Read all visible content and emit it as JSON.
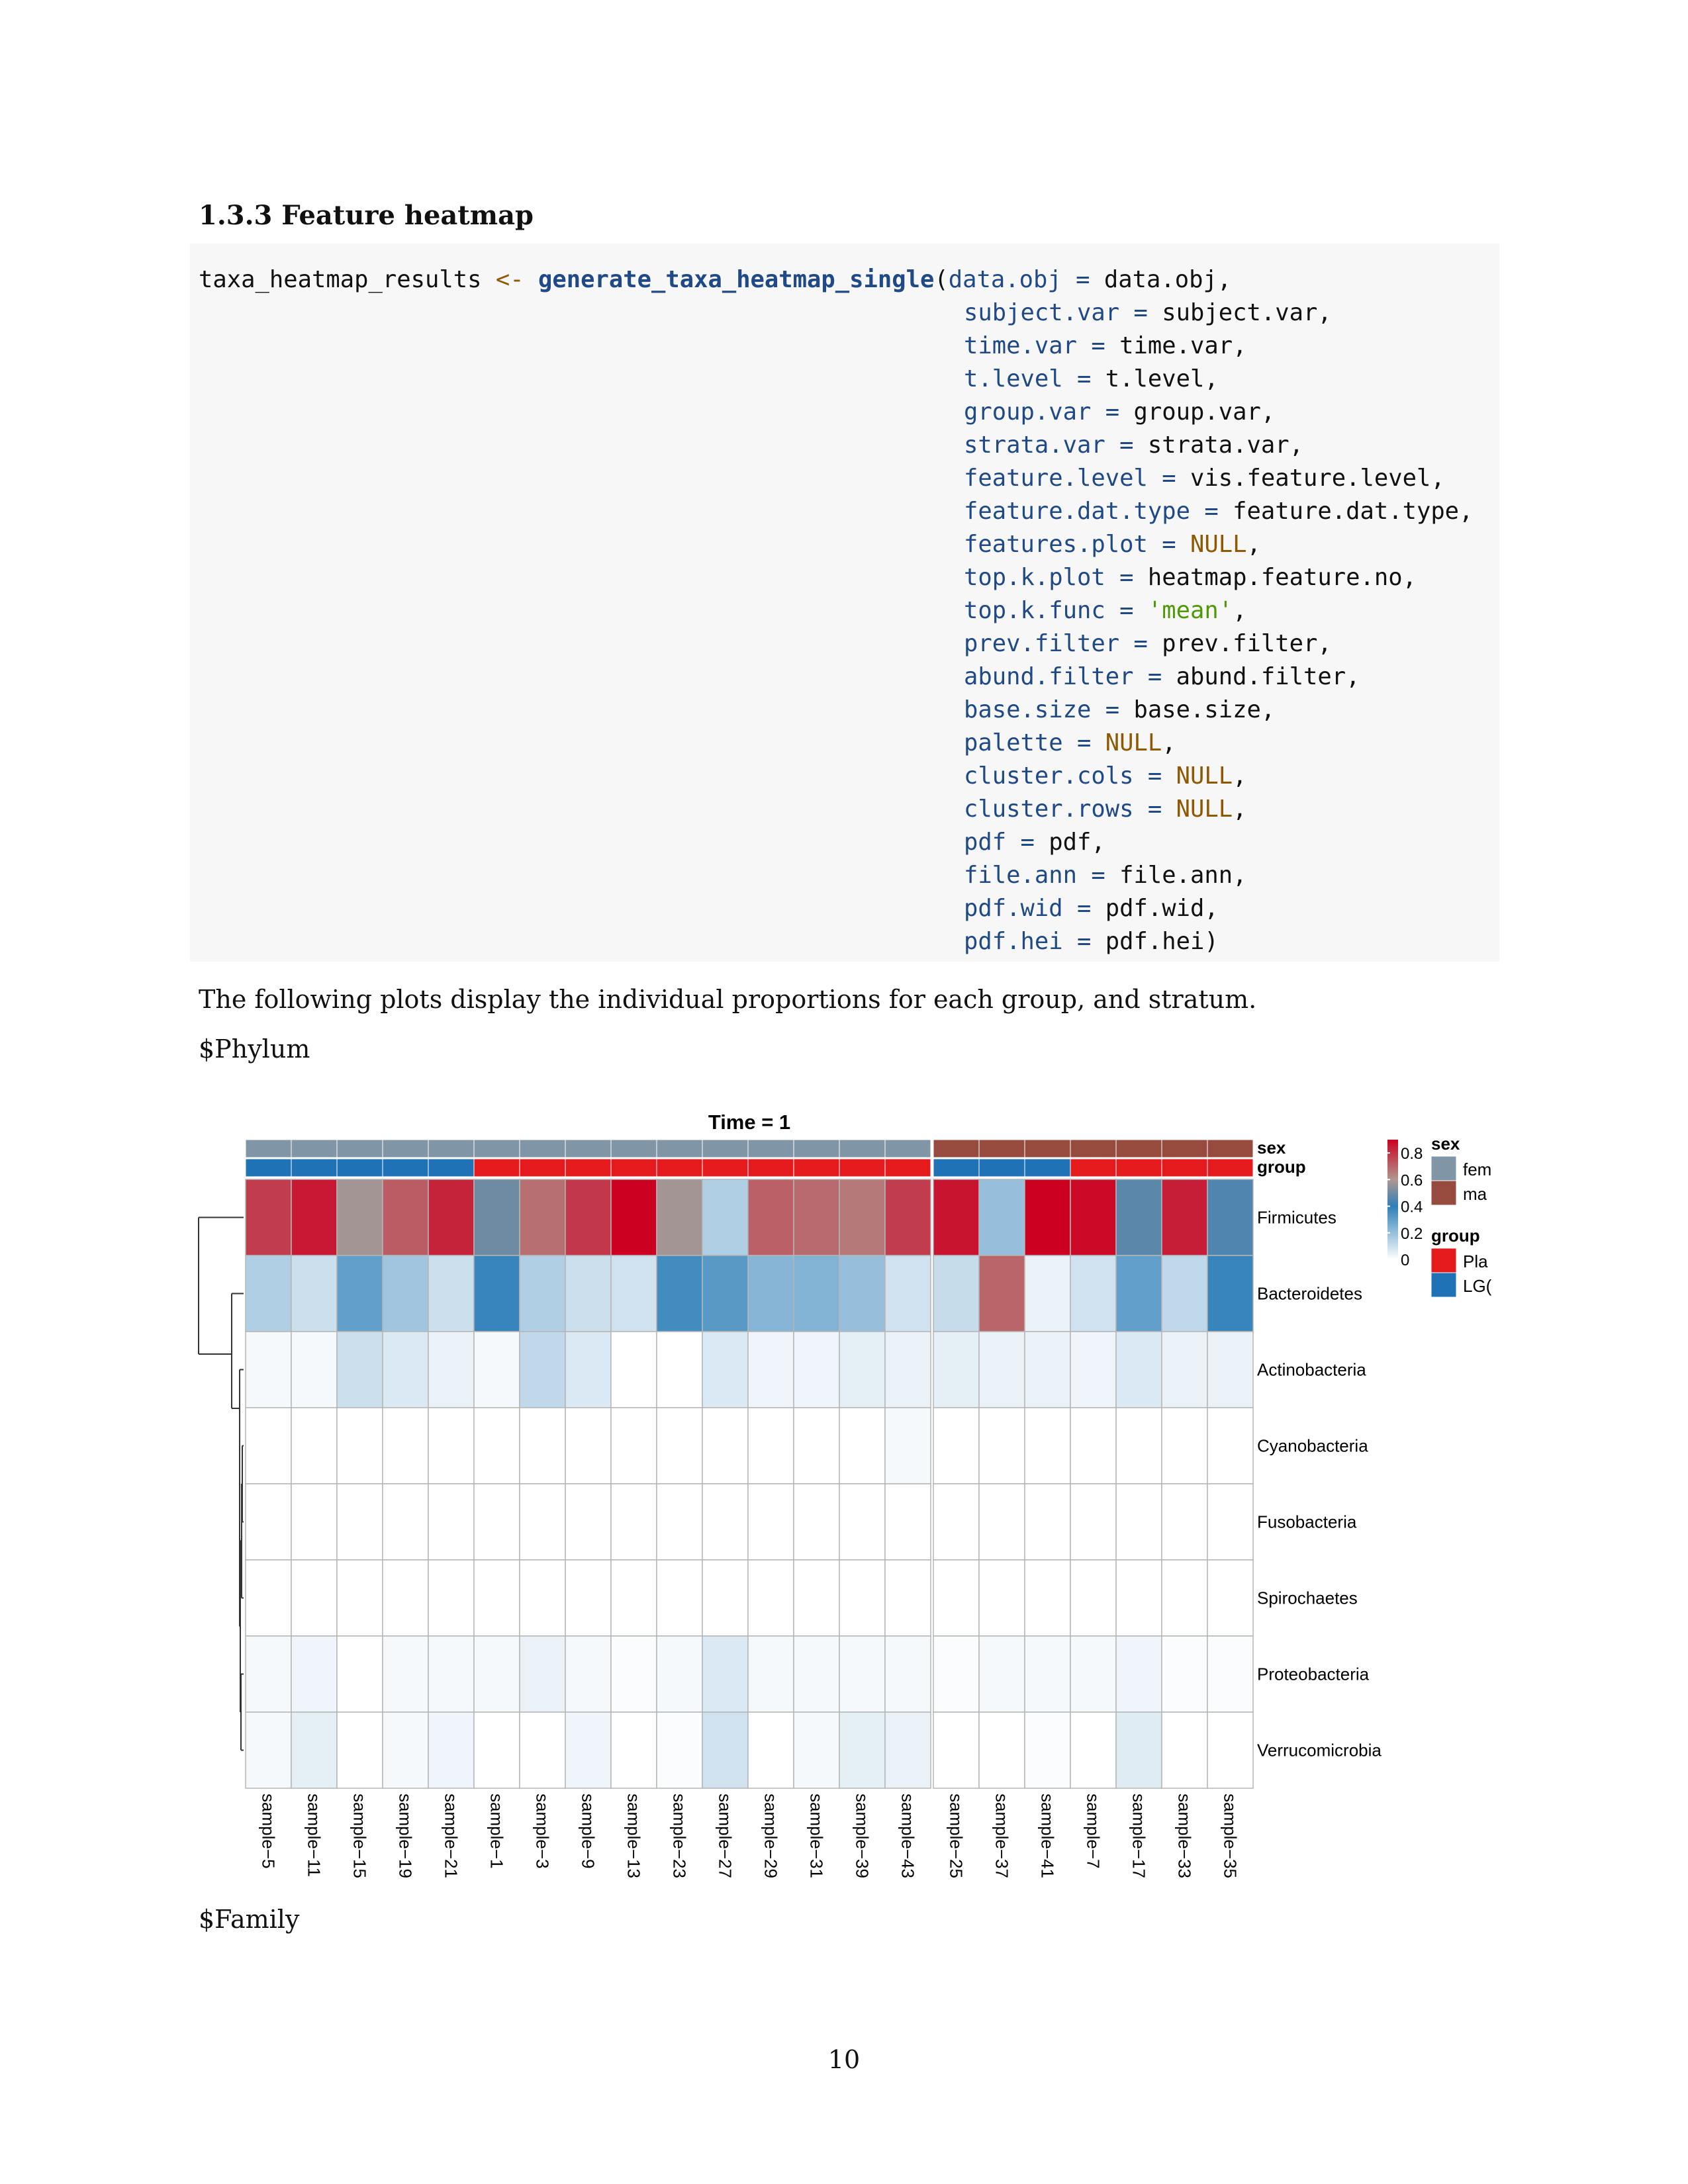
{
  "section": {
    "title": "1.3.3 Feature heatmap"
  },
  "code": {
    "lines": [
      [
        [
          "plain",
          "taxa_heatmap_results "
        ],
        [
          "op",
          "<-"
        ],
        [
          "plain",
          " "
        ],
        [
          "fn",
          "generate_taxa_heatmap_single"
        ],
        [
          "plain",
          "("
        ],
        [
          "arg",
          "data.obj"
        ],
        [
          "eq",
          " = "
        ],
        [
          "plain",
          "data.obj,"
        ]
      ],
      [
        [
          "arg",
          "subject.var"
        ],
        [
          "eq",
          " = "
        ],
        [
          "plain",
          "subject.var,"
        ]
      ],
      [
        [
          "arg",
          "time.var"
        ],
        [
          "eq",
          " = "
        ],
        [
          "plain",
          "time.var,"
        ]
      ],
      [
        [
          "arg",
          "t.level"
        ],
        [
          "eq",
          " = "
        ],
        [
          "plain",
          "t.level,"
        ]
      ],
      [
        [
          "arg",
          "group.var"
        ],
        [
          "eq",
          " = "
        ],
        [
          "plain",
          "group.var,"
        ]
      ],
      [
        [
          "arg",
          "strata.var"
        ],
        [
          "eq",
          " = "
        ],
        [
          "plain",
          "strata.var,"
        ]
      ],
      [
        [
          "arg",
          "feature.level"
        ],
        [
          "eq",
          " = "
        ],
        [
          "plain",
          "vis.feature.level,"
        ]
      ],
      [
        [
          "arg",
          "feature.dat.type"
        ],
        [
          "eq",
          " = "
        ],
        [
          "plain",
          "feature.dat.type,"
        ]
      ],
      [
        [
          "arg",
          "features.plot"
        ],
        [
          "eq",
          " = "
        ],
        [
          "null",
          "NULL"
        ],
        [
          "plain",
          ","
        ]
      ],
      [
        [
          "arg",
          "top.k.plot"
        ],
        [
          "eq",
          " = "
        ],
        [
          "plain",
          "heatmap.feature.no,"
        ]
      ],
      [
        [
          "arg",
          "top.k.func"
        ],
        [
          "eq",
          " = "
        ],
        [
          "str",
          "'mean'"
        ],
        [
          "plain",
          ","
        ]
      ],
      [
        [
          "arg",
          "prev.filter"
        ],
        [
          "eq",
          " = "
        ],
        [
          "plain",
          "prev.filter,"
        ]
      ],
      [
        [
          "arg",
          "abund.filter"
        ],
        [
          "eq",
          " = "
        ],
        [
          "plain",
          "abund.filter,"
        ]
      ],
      [
        [
          "arg",
          "base.size"
        ],
        [
          "eq",
          " = "
        ],
        [
          "plain",
          "base.size,"
        ]
      ],
      [
        [
          "arg",
          "palette"
        ],
        [
          "eq",
          " = "
        ],
        [
          "null",
          "NULL"
        ],
        [
          "plain",
          ","
        ]
      ],
      [
        [
          "arg",
          "cluster.cols"
        ],
        [
          "eq",
          " = "
        ],
        [
          "null",
          "NULL"
        ],
        [
          "plain",
          ","
        ]
      ],
      [
        [
          "arg",
          "cluster.rows"
        ],
        [
          "eq",
          " = "
        ],
        [
          "null",
          "NULL"
        ],
        [
          "plain",
          ","
        ]
      ],
      [
        [
          "arg",
          "pdf"
        ],
        [
          "eq",
          " = "
        ],
        [
          "plain",
          "pdf,"
        ]
      ],
      [
        [
          "arg",
          "file.ann"
        ],
        [
          "eq",
          " = "
        ],
        [
          "plain",
          "file.ann,"
        ]
      ],
      [
        [
          "arg",
          "pdf.wid"
        ],
        [
          "eq",
          " = "
        ],
        [
          "plain",
          "pdf.wid,"
        ]
      ],
      [
        [
          "arg",
          "pdf.hei"
        ],
        [
          "eq",
          " = "
        ],
        [
          "plain",
          "pdf.hei)"
        ]
      ]
    ]
  },
  "paragraph": "The following plots display the individual proportions for each group, and stratum.",
  "phylum_label": "$Phylum",
  "family_label": "$Family",
  "page_number": "10",
  "chart_data": {
    "type": "heatmap",
    "title": "Time = 1",
    "rows": [
      "Firmicutes",
      "Bacteroidetes",
      "Actinobacteria",
      "Cyanobacteria",
      "Fusobacteria",
      "Spirochaetes",
      "Proteobacteria",
      "Verrucomicrobia"
    ],
    "columns": [
      "sample−5",
      "sample−11",
      "sample−15",
      "sample−19",
      "sample−21",
      "sample−1",
      "sample−3",
      "sample−9",
      "sample−13",
      "sample−23",
      "sample−27",
      "sample−29",
      "sample−31",
      "sample−39",
      "sample−43",
      "sample−25",
      "sample−37",
      "sample−41",
      "sample−7",
      "sample−17",
      "sample−33",
      "sample−35"
    ],
    "column_groups": [
      15,
      7
    ],
    "annotation_labels": [
      "sex",
      "group"
    ],
    "sex_annotation": [
      0,
      0,
      0,
      0,
      0,
      0,
      0,
      0,
      0,
      0,
      0,
      0,
      0,
      0,
      0,
      1,
      1,
      1,
      1,
      1,
      1,
      1
    ],
    "group_annotation": [
      1,
      1,
      1,
      1,
      1,
      0,
      0,
      0,
      0,
      0,
      0,
      0,
      0,
      0,
      0,
      1,
      1,
      1,
      0,
      0,
      0,
      0
    ],
    "values": [
      [
        0.78,
        0.85,
        0.58,
        0.72,
        0.83,
        0.5,
        0.68,
        0.79,
        0.9,
        0.58,
        0.15,
        0.71,
        0.69,
        0.66,
        0.78,
        0.86,
        0.2,
        0.9,
        0.88,
        0.47,
        0.84,
        0.45
      ],
      [
        0.15,
        0.1,
        0.3,
        0.18,
        0.1,
        0.38,
        0.15,
        0.1,
        0.09,
        0.36,
        0.32,
        0.23,
        0.24,
        0.2,
        0.09,
        0.11,
        0.7,
        0.04,
        0.09,
        0.3,
        0.12,
        0.38
      ],
      [
        0.02,
        0.02,
        0.1,
        0.07,
        0.04,
        0.02,
        0.12,
        0.07,
        0.0,
        0.0,
        0.07,
        0.03,
        0.03,
        0.05,
        0.04,
        0.05,
        0.04,
        0.04,
        0.03,
        0.07,
        0.04,
        0.04
      ],
      [
        0.0,
        0.0,
        0.0,
        0.0,
        0.0,
        0.0,
        0.0,
        0.0,
        0.0,
        0.0,
        0.0,
        0.0,
        0.0,
        0.0,
        0.02,
        0.0,
        0.0,
        0.0,
        0.0,
        0.0,
        0.0,
        0.0
      ],
      [
        0.0,
        0.0,
        0.0,
        0.0,
        0.0,
        0.0,
        0.0,
        0.0,
        0.0,
        0.0,
        0.0,
        0.0,
        0.0,
        0.0,
        0.0,
        0.0,
        0.0,
        0.0,
        0.0,
        0.0,
        0.0,
        0.0
      ],
      [
        0.0,
        0.0,
        0.0,
        0.0,
        0.0,
        0.0,
        0.0,
        0.0,
        0.0,
        0.0,
        0.0,
        0.0,
        0.0,
        0.0,
        0.0,
        0.0,
        0.0,
        0.0,
        0.0,
        0.0,
        0.0,
        0.0
      ],
      [
        0.02,
        0.03,
        0.0,
        0.02,
        0.02,
        0.02,
        0.04,
        0.02,
        0.01,
        0.02,
        0.07,
        0.02,
        0.02,
        0.02,
        0.02,
        0.01,
        0.02,
        0.02,
        0.02,
        0.03,
        0.01,
        0.01
      ],
      [
        0.02,
        0.05,
        0.0,
        0.02,
        0.03,
        0.0,
        0.0,
        0.03,
        0.0,
        0.01,
        0.09,
        0.0,
        0.02,
        0.05,
        0.04,
        0.0,
        0.0,
        0.01,
        0.0,
        0.06,
        0.0,
        0.0
      ]
    ],
    "colorbar_ticks": [
      "0.8",
      "0.6",
      "0.4",
      "0.2",
      "0"
    ],
    "colorbar_ticks_values": [
      0.8,
      0.6,
      0.4,
      0.2,
      0
    ],
    "color_range": [
      0,
      0.9
    ],
    "legend": {
      "sex_title": "sex",
      "sex_items": [
        "fem",
        "ma"
      ],
      "group_title": "group",
      "group_items": [
        "Pla",
        "LG("
      ]
    },
    "colors": {
      "sex": [
        "#8096a6",
        "#974b3f"
      ],
      "group": [
        "#e41a1c",
        "#1f72b5"
      ],
      "scale_low": "#ffffff",
      "scale_mid_blue": "#2e7fb8",
      "scale_mid": "#b0978f",
      "scale_high": "#cc0020"
    }
  }
}
